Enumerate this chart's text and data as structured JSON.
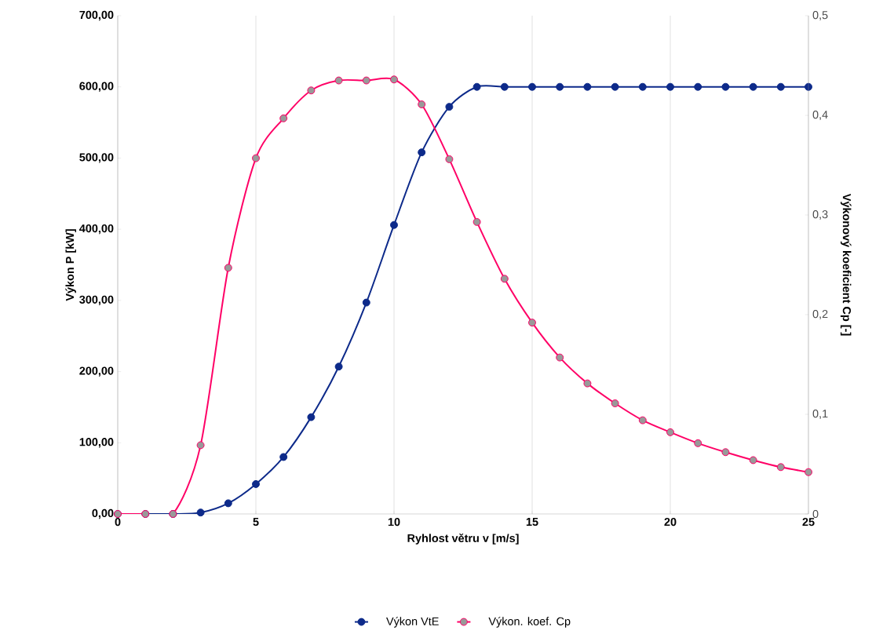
{
  "chart_data": {
    "type": "line",
    "xlabel": "Ryhlost větru v [m/s]",
    "ylabel": "Výkon P [kW]",
    "y2label": "Výkonový koeficient Cp [-]",
    "x": [
      0,
      1,
      2,
      3,
      4,
      5,
      6,
      7,
      8,
      9,
      10,
      11,
      12,
      13,
      14,
      15,
      16,
      17,
      18,
      19,
      20,
      21,
      22,
      23,
      24,
      25
    ],
    "series": [
      {
        "name": "Výkon VtE",
        "color": "#0d2a8a",
        "values": [
          0,
          0,
          0,
          2,
          15,
          42,
          80,
          136,
          207,
          297,
          406,
          508,
          572,
          600,
          600,
          600,
          600,
          600,
          600,
          600,
          600,
          600,
          600,
          600,
          600,
          600
        ]
      },
      {
        "name": "Výkon. koef. Cp",
        "color": "#ff0066",
        "axis": "y2",
        "values": [
          0,
          0,
          0,
          0.069,
          0.247,
          0.357,
          0.397,
          0.425,
          0.435,
          0.435,
          0.436,
          0.411,
          0.356,
          0.293,
          0.236,
          0.192,
          0.157,
          0.131,
          0.111,
          0.094,
          0.082,
          0.071,
          0.062,
          0.054,
          0.047,
          0.042
        ]
      }
    ],
    "xlim": [
      0,
      25
    ],
    "xticks": [
      0,
      5,
      10,
      15,
      20,
      25
    ],
    "ylim": [
      0,
      700
    ],
    "yticks": [
      {
        "value": 0,
        "label": "0,00"
      },
      {
        "value": 100,
        "label": "100,00"
      },
      {
        "value": 200,
        "label": "200,00"
      },
      {
        "value": 300,
        "label": "300,00"
      },
      {
        "value": 400,
        "label": "400,00"
      },
      {
        "value": 500,
        "label": "500,00"
      },
      {
        "value": 600,
        "label": "600,00"
      },
      {
        "value": 700,
        "label": "700,00"
      }
    ],
    "y2lim": [
      0,
      0.5
    ],
    "y2ticks": [
      {
        "value": 0,
        "label": "0"
      },
      {
        "value": 0.1,
        "label": "0,1"
      },
      {
        "value": 0.2,
        "label": "0,2"
      },
      {
        "value": 0.3,
        "label": "0,3"
      },
      {
        "value": 0.4,
        "label": "0,4"
      },
      {
        "value": 0.5,
        "label": "0,5"
      }
    ],
    "grid": "x",
    "legend": "bottom",
    "marker": "circle",
    "line_style": "solid"
  }
}
